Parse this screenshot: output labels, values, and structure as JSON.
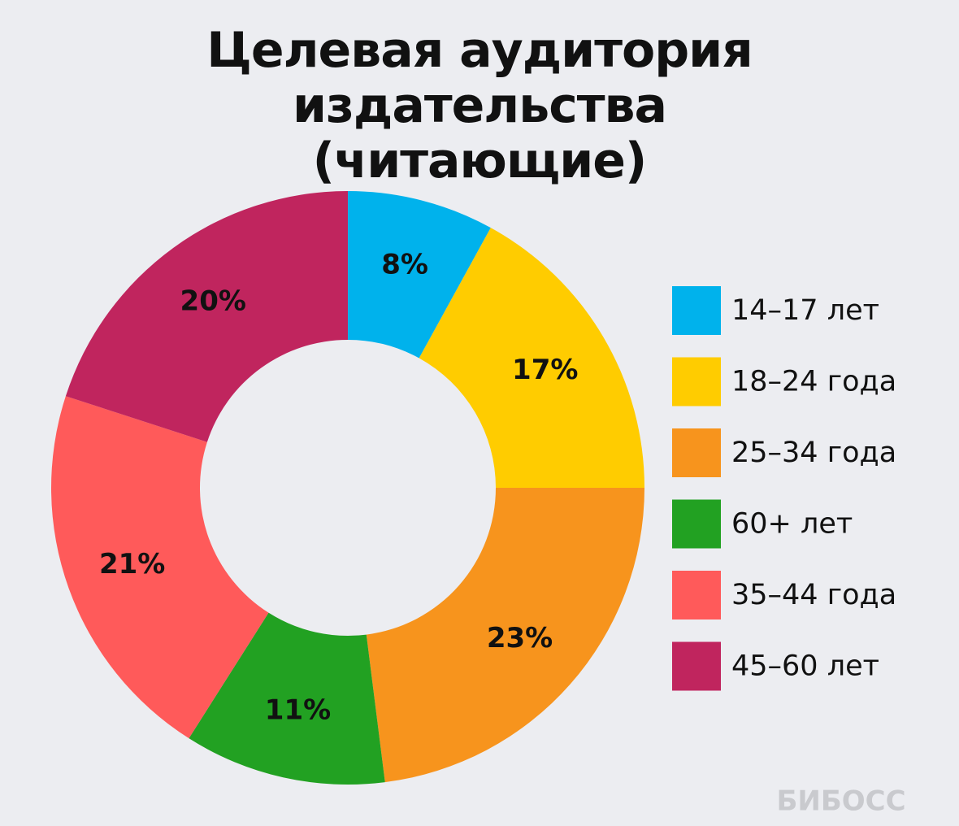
{
  "chart_data": {
    "type": "donut",
    "title": "Целевая аудитория издательства (читающие)",
    "categories": [
      "14–17 лет",
      "18–24 года",
      "25–34 года",
      "60+ лет",
      "35–44 года",
      "45–60 лет"
    ],
    "values": [
      8,
      17,
      23,
      11,
      21,
      20
    ],
    "value_labels": [
      "8%",
      "17%",
      "23%",
      "11%",
      "21%",
      "20%"
    ],
    "colors": [
      "#00b2ec",
      "#ffcc00",
      "#f7941d",
      "#22a122",
      "#ff5a5a",
      "#c0255e"
    ],
    "legend": "right",
    "watermark": "БИБОСС"
  }
}
